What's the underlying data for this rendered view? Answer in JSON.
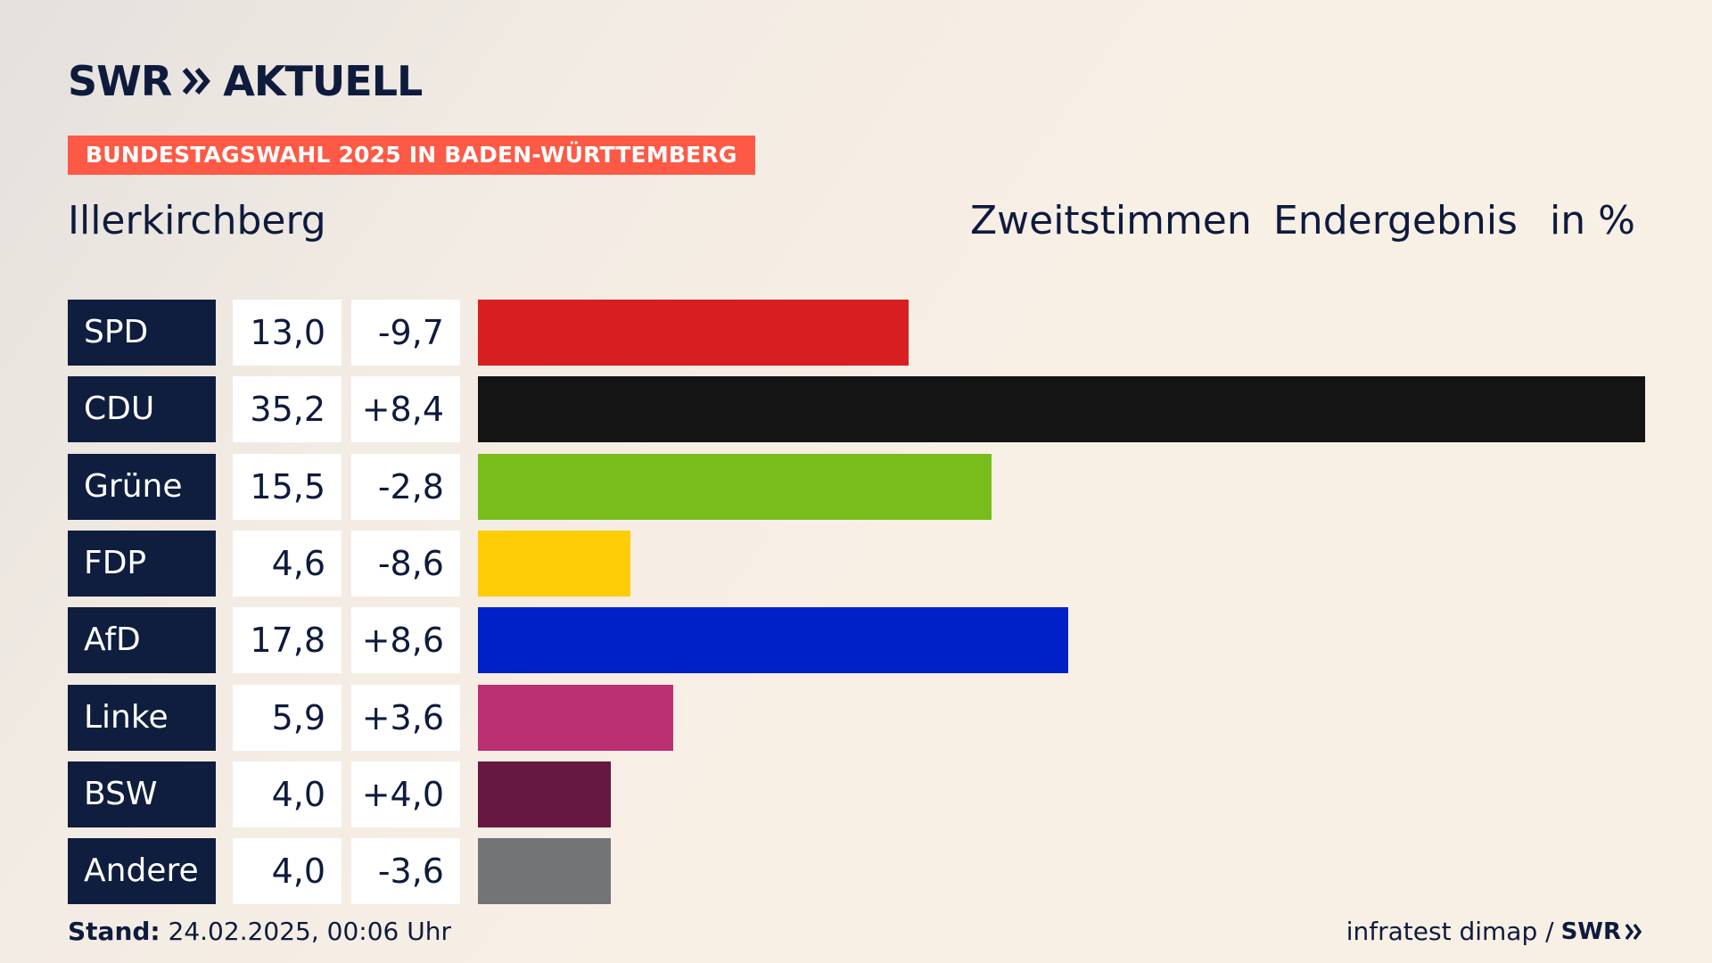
{
  "header": {
    "logo_swr": "SWR",
    "logo_aktuell": "AKTUELL",
    "banner": "BUNDESTAGSWAHL 2025 IN BADEN-WÜRTTEMBERG",
    "place": "Illerkirchberg",
    "col1": "Zweitstimmen",
    "col2": "Endergebnis",
    "col3": "in %"
  },
  "chart_data": {
    "type": "bar",
    "categories": [
      "SPD",
      "CDU",
      "Grüne",
      "FDP",
      "AfD",
      "Linke",
      "BSW",
      "Andere"
    ],
    "values": [
      13.0,
      35.2,
      15.5,
      4.6,
      17.8,
      5.9,
      4.0,
      4.0
    ],
    "values_label": [
      "13,0",
      "35,2",
      "15,5",
      "4,6",
      "17,8",
      "5,9",
      "4,0",
      "4,0"
    ],
    "diff": [
      -9.7,
      8.4,
      -2.8,
      -8.6,
      8.6,
      3.6,
      4.0,
      -3.6
    ],
    "diff_label": [
      "-9,7",
      "+8,4",
      "-2,8",
      "-8,6",
      "+8,6",
      "+3,6",
      "+4,0",
      "-3,6"
    ],
    "colors": [
      "#d71f21",
      "#141414",
      "#79bd1d",
      "#ffcc08",
      "#0020c8",
      "#bb3073",
      "#661841",
      "#737476"
    ],
    "orientation": "horizontal",
    "xlim": [
      0,
      35.2
    ]
  },
  "footer": {
    "stand_label": "Stand:",
    "stand_value": "24.02.2025, 00:06 Uhr",
    "source": "infratest dimap /",
    "source_swr": "SWR"
  }
}
